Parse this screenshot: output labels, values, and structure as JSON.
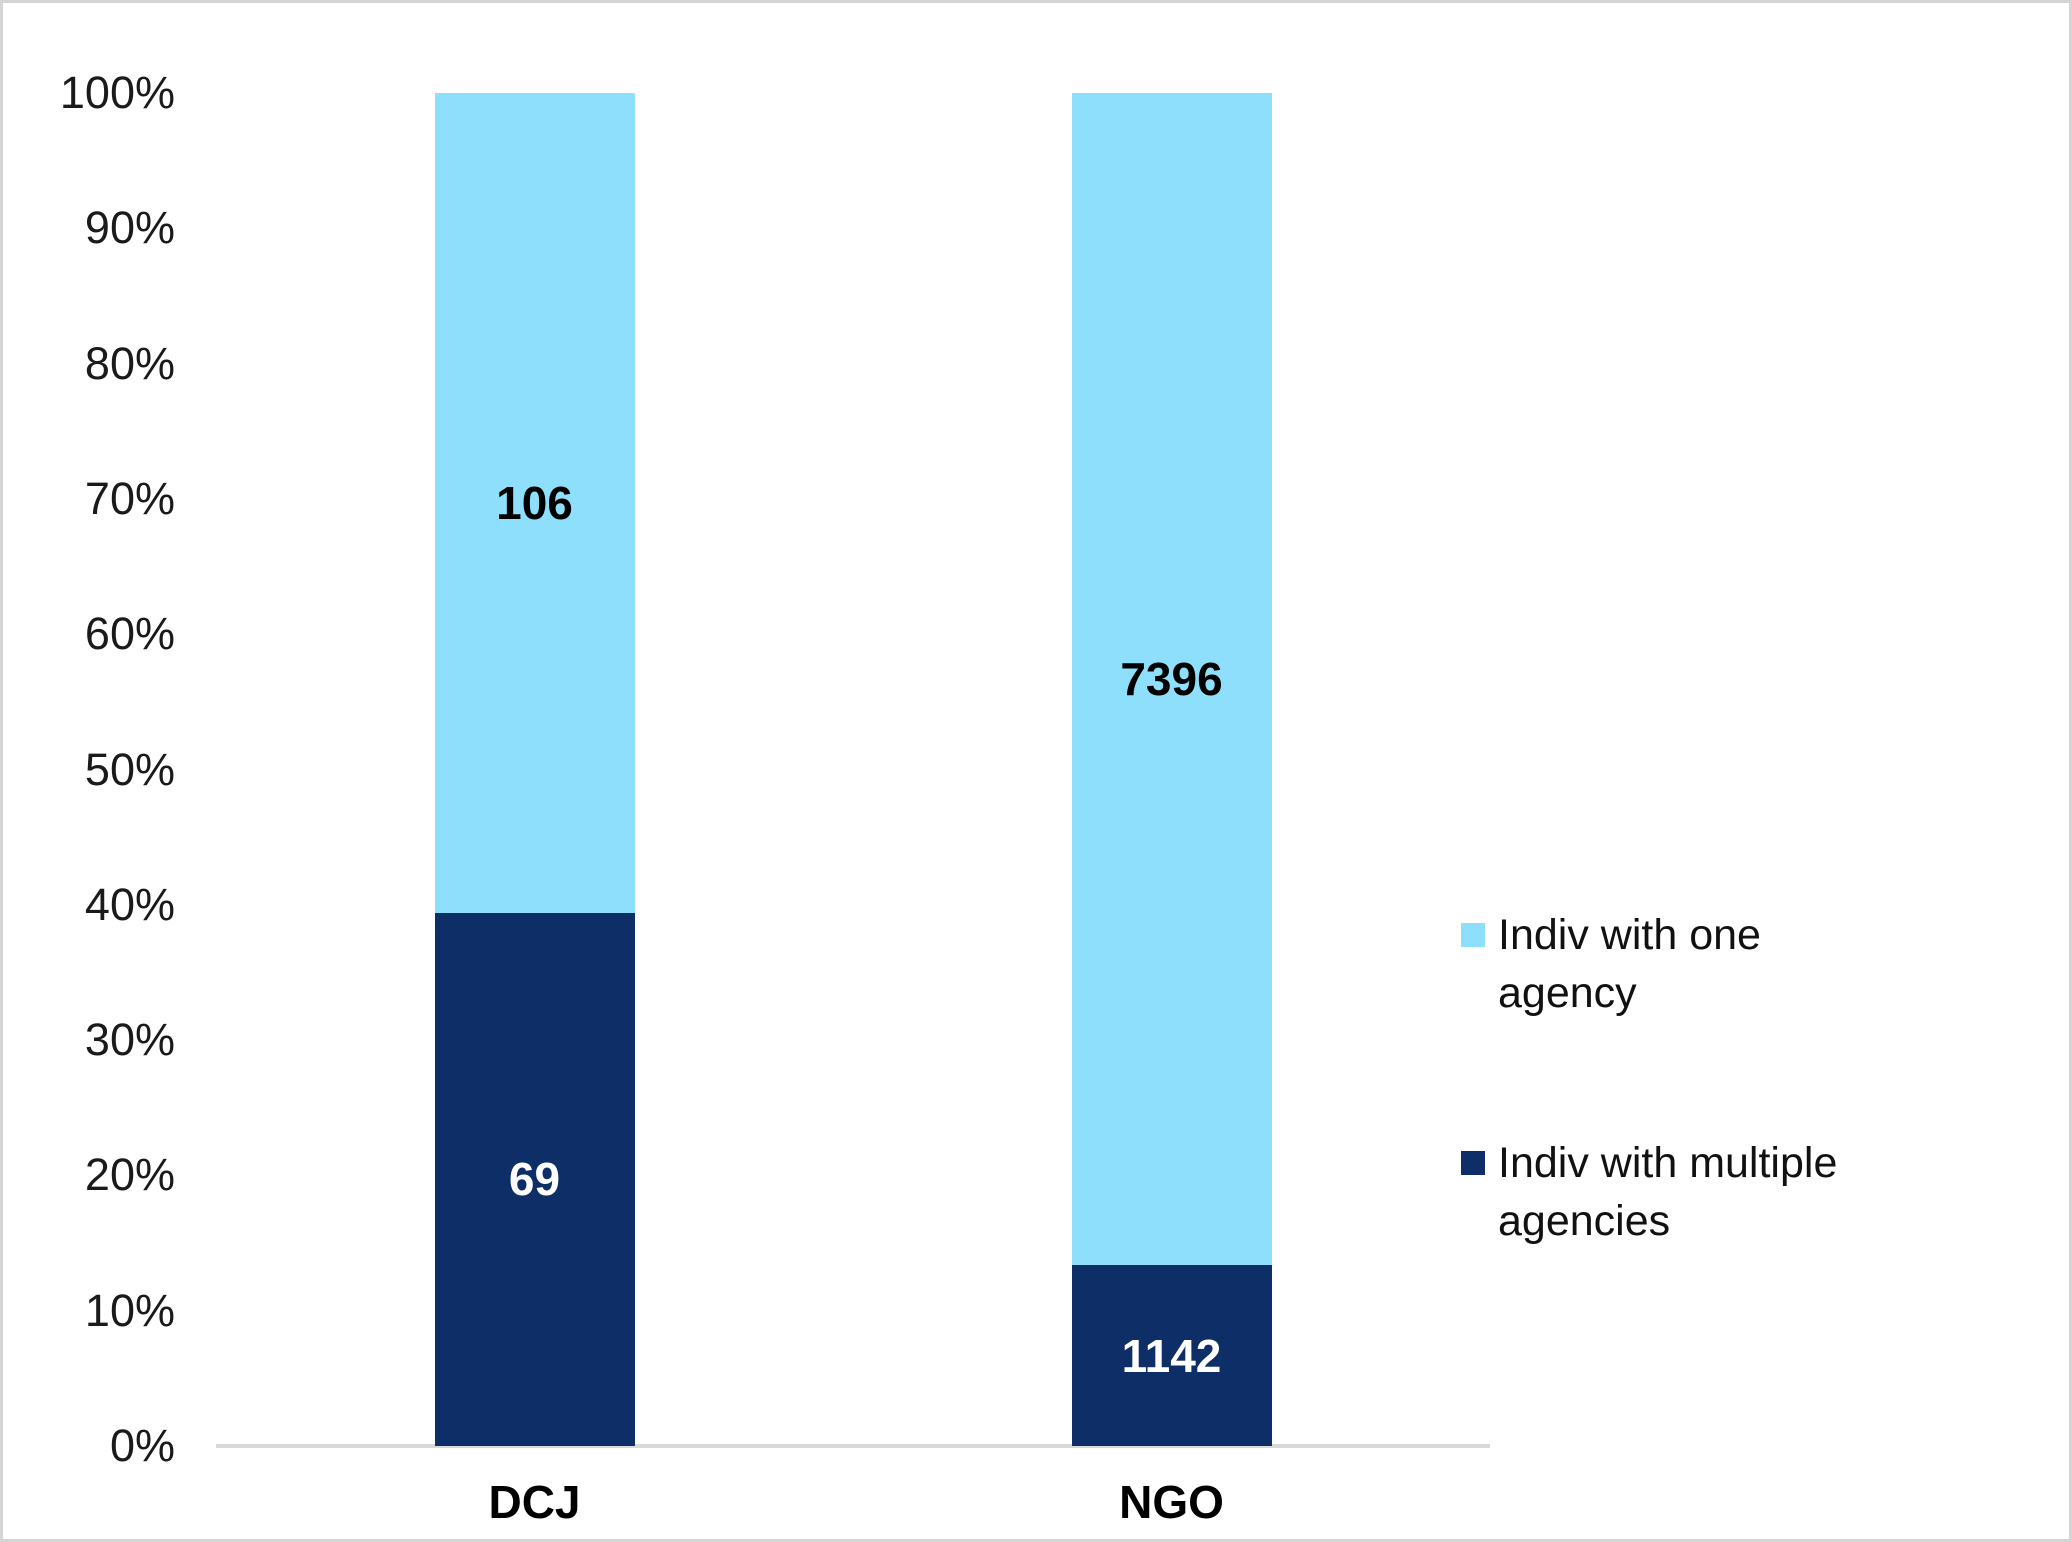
{
  "chart_data": {
    "type": "bar",
    "subtype": "100%-stacked-column",
    "title": "",
    "xlabel": "",
    "ylabel": "",
    "categories": [
      "DCJ",
      "NGO"
    ],
    "series": [
      {
        "name": "Indiv with one agency",
        "color": "#8EDFFB",
        "label_color": "#000000",
        "values": [
          106,
          7396
        ]
      },
      {
        "name": "Indiv with multiple agencies",
        "color": "#0D2E66",
        "label_color": "#FFFFFF",
        "values": [
          69,
          1142
        ]
      }
    ],
    "stack_order_bottom_to_top": [
      "Indiv with multiple agencies",
      "Indiv with one agency"
    ],
    "data_labels_shown": true,
    "y_axis": {
      "unit": "percent",
      "min": 0,
      "max": 100,
      "ticks": [
        {
          "label": "0%",
          "value": 0
        },
        {
          "label": "10%",
          "value": 10
        },
        {
          "label": "20%",
          "value": 20
        },
        {
          "label": "30%",
          "value": 30
        },
        {
          "label": "40%",
          "value": 40
        },
        {
          "label": "50%",
          "value": 50
        },
        {
          "label": "60%",
          "value": 60
        },
        {
          "label": "70%",
          "value": 70
        },
        {
          "label": "80%",
          "value": 80
        },
        {
          "label": "90%",
          "value": 90
        },
        {
          "label": "100%",
          "value": 100
        }
      ]
    },
    "gridlines": false,
    "legend_position": "right",
    "axis_line_color": "#D9D9D9",
    "background_color": "#FFFFFF"
  }
}
